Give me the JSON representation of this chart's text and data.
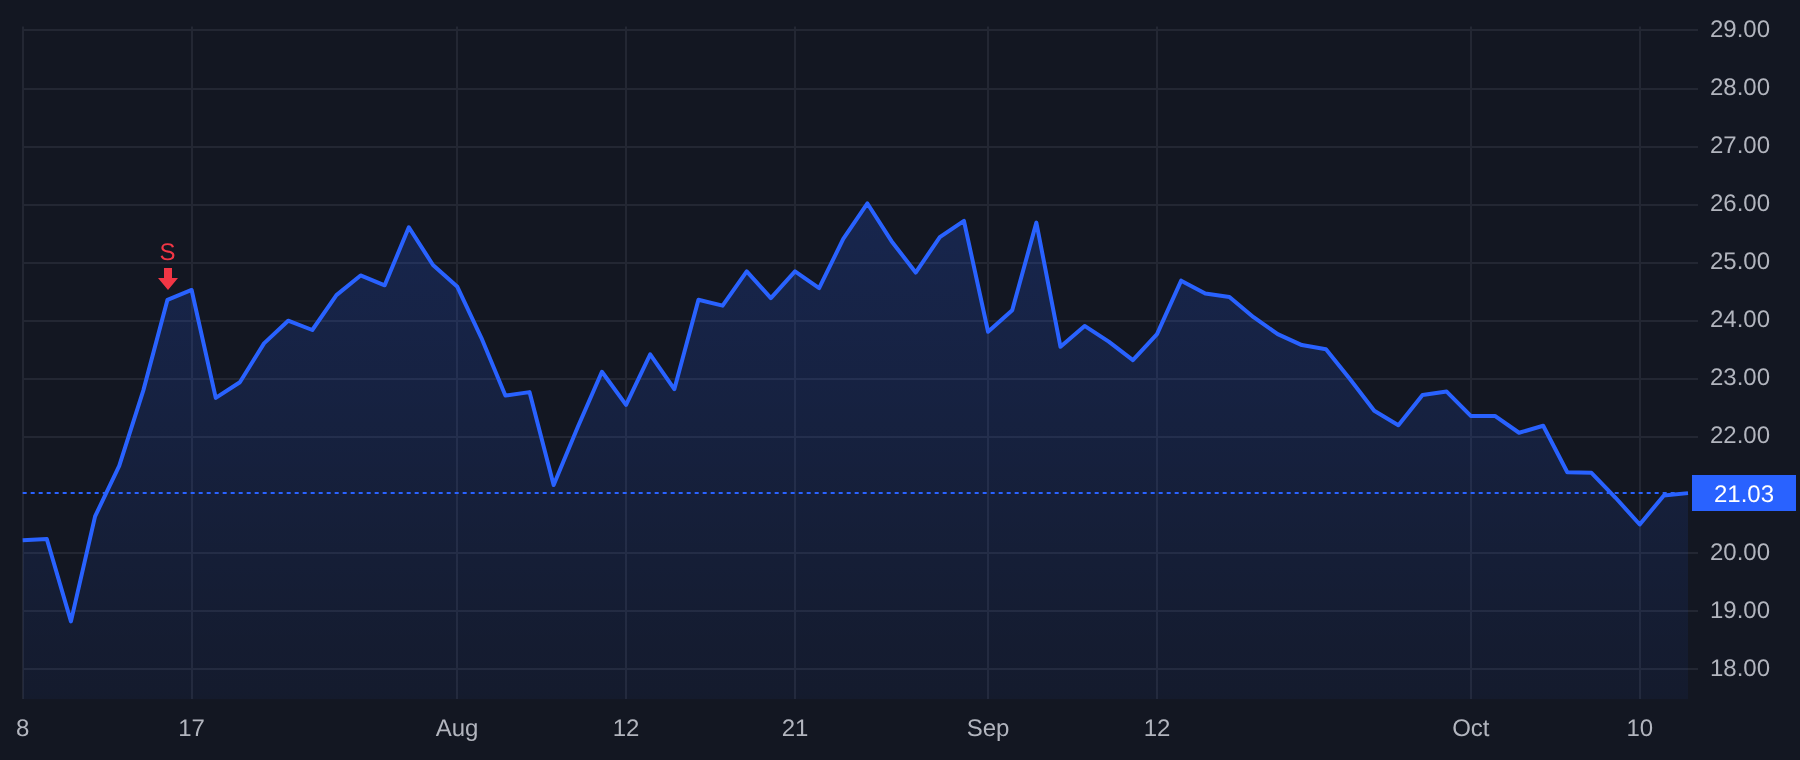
{
  "chart_data": {
    "type": "area",
    "categories": [
      "8",
      null,
      null,
      null,
      null,
      null,
      null,
      "17",
      null,
      null,
      null,
      null,
      null,
      null,
      null,
      null,
      null,
      null,
      "Aug",
      null,
      null,
      null,
      null,
      null,
      null,
      "12",
      null,
      null,
      null,
      null,
      null,
      null,
      "21",
      null,
      null,
      null,
      null,
      null,
      null,
      null,
      "Sep",
      null,
      null,
      null,
      null,
      null,
      null,
      "12",
      null,
      null,
      null,
      null,
      null,
      null,
      null,
      null,
      null,
      null,
      null,
      null,
      "Oct",
      null,
      null,
      null,
      null,
      null,
      null,
      "10",
      null,
      null
    ],
    "series": [
      {
        "color": "#2962ff",
        "values": [
          20.22,
          20.24,
          18.82,
          20.63,
          21.5,
          22.8,
          24.36,
          24.53,
          22.67,
          22.94,
          23.61,
          24.0,
          23.84,
          24.44,
          24.78,
          24.61,
          25.61,
          24.96,
          24.59,
          23.71,
          22.71,
          22.77,
          21.17,
          22.17,
          23.12,
          22.55,
          23.42,
          22.82,
          24.36,
          24.26,
          24.85,
          24.39,
          24.85,
          24.56,
          25.41,
          26.02,
          25.37,
          24.83,
          25.44,
          25.72,
          23.81,
          24.18,
          25.69,
          23.55,
          23.91,
          23.64,
          23.32,
          23.77,
          24.69,
          24.47,
          24.41,
          24.06,
          23.77,
          23.58,
          23.51,
          22.99,
          22.45,
          22.2,
          22.72,
          22.78,
          22.36,
          22.36,
          22.07,
          22.19,
          21.39,
          21.38,
          20.95,
          20.49,
          20.99,
          21.03
        ]
      }
    ],
    "ylim": [
      17.48,
      29.07
    ],
    "yticks": [
      {
        "value": 18,
        "label": "18.00"
      },
      {
        "value": 19,
        "label": "19.00"
      },
      {
        "value": 20,
        "label": "20.00"
      },
      {
        "value": 22,
        "label": "22.00"
      },
      {
        "value": 23,
        "label": "23.00"
      },
      {
        "value": 24,
        "label": "24.00"
      },
      {
        "value": 25,
        "label": "25.00"
      },
      {
        "value": 26,
        "label": "26.00"
      },
      {
        "value": 27,
        "label": "27.00"
      },
      {
        "value": 28,
        "label": "28.00"
      },
      {
        "value": 29,
        "label": "29.00"
      }
    ],
    "grid": true,
    "ref_lines": [
      {
        "axis": "y",
        "value": 21.03,
        "label": "21.03",
        "color": "#2962ff",
        "line_style": "dotted"
      }
    ],
    "annotations": [
      {
        "text": "S",
        "y": 24.36
      }
    ]
  }
}
